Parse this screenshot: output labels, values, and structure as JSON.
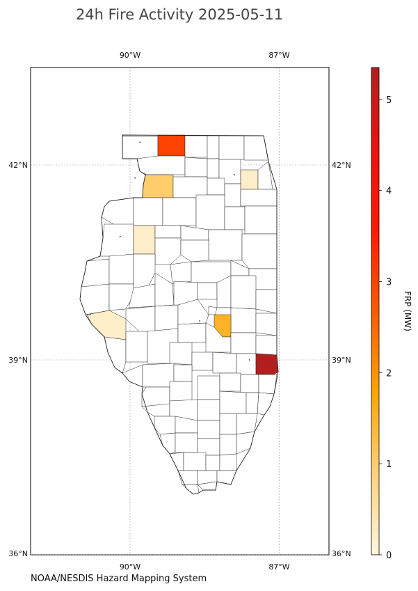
{
  "title": "24h Fire Activity 2025-05-11",
  "credit": "NOAA/NESDIS Hazard Mapping System",
  "colorbar": {
    "label": "FRP (MW)",
    "ticks": [
      0,
      1,
      2,
      3,
      4,
      5
    ],
    "min": 0,
    "max": 5.35,
    "colors": [
      "#fff6e0",
      "#ffd27a",
      "#ffa500",
      "#ff5a00",
      "#ff1a00",
      "#ee1111",
      "#b02020"
    ]
  },
  "map": {
    "extent": {
      "lon_min": -92.0,
      "lon_max": -86.0,
      "lat_min": 36.0,
      "lat_max": 43.5
    },
    "lon_ticks": [
      {
        "value": -90,
        "label": "90°W"
      },
      {
        "value": -87,
        "label": "87°W"
      }
    ],
    "lat_ticks": [
      {
        "value": 42,
        "label": "42°N"
      },
      {
        "value": 39,
        "label": "39°N"
      },
      {
        "value": 36,
        "label": "36°N"
      }
    ],
    "gridlines": true
  },
  "chart_data": {
    "type": "choropleth",
    "title": "24h Fire Activity 2025-05-11",
    "value_label": "FRP (MW)",
    "region": "Illinois counties",
    "regions": [
      {
        "lon": -89.8,
        "lat": 42.35,
        "frp": 3.0
      },
      {
        "lon": -89.9,
        "lat": 41.8,
        "frp": 1.0
      },
      {
        "lon": -87.9,
        "lat": 41.85,
        "frp": 0.2
      },
      {
        "lon": -90.2,
        "lat": 40.9,
        "frp": 0.2
      },
      {
        "lon": -90.8,
        "lat": 39.7,
        "frp": 0.2
      },
      {
        "lon": -88.6,
        "lat": 39.6,
        "frp": 1.5
      },
      {
        "lon": -87.6,
        "lat": 39.0,
        "frp": 5.4
      }
    ]
  }
}
